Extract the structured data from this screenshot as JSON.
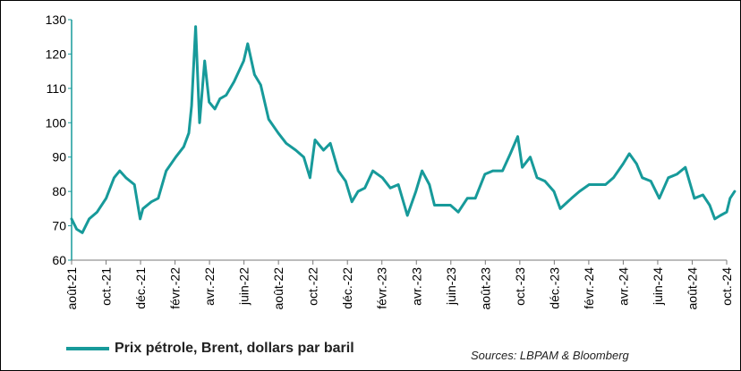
{
  "chart_data": {
    "type": "line",
    "title": "",
    "xlabel": "",
    "ylabel": "",
    "ylim": [
      60,
      130
    ],
    "yticks": [
      "60",
      "70",
      "80",
      "90",
      "100",
      "110",
      "120",
      "130"
    ],
    "grid": false,
    "legend_position": "bottom-left",
    "color": "#179a9a",
    "categories": [
      "août-21",
      "oct.-21",
      "déc.-21",
      "févr.-22",
      "avr.-22",
      "juin-22",
      "août-22",
      "oct.-22",
      "déc.-22",
      "févr.-23",
      "avr.-23",
      "juin-23",
      "août-23",
      "oct.-23",
      "déc.-23",
      "févr.-24",
      "avr.-24",
      "juin-24",
      "août-24",
      "oct.-24"
    ],
    "series": [
      {
        "name": "Prix pétrole, Brent, dollars par baril",
        "x": [
          "2021-08-01",
          "2021-08-10",
          "2021-08-20",
          "2021-09-01",
          "2021-09-15",
          "2021-10-01",
          "2021-10-15",
          "2021-10-25",
          "2021-11-05",
          "2021-11-20",
          "2021-11-30",
          "2021-12-05",
          "2021-12-20",
          "2022-01-01",
          "2022-01-15",
          "2022-02-01",
          "2022-02-15",
          "2022-02-24",
          "2022-03-01",
          "2022-03-08",
          "2022-03-15",
          "2022-03-24",
          "2022-04-01",
          "2022-04-11",
          "2022-04-20",
          "2022-05-01",
          "2022-05-15",
          "2022-06-01",
          "2022-06-08",
          "2022-06-20",
          "2022-07-01",
          "2022-07-15",
          "2022-08-01",
          "2022-08-15",
          "2022-09-01",
          "2022-09-15",
          "2022-09-26",
          "2022-10-05",
          "2022-10-20",
          "2022-11-01",
          "2022-11-15",
          "2022-11-28",
          "2022-12-09",
          "2022-12-20",
          "2023-01-01",
          "2023-01-15",
          "2023-02-01",
          "2023-02-15",
          "2023-03-01",
          "2023-03-17",
          "2023-04-01",
          "2023-04-12",
          "2023-04-25",
          "2023-05-04",
          "2023-05-20",
          "2023-06-01",
          "2023-06-15",
          "2023-07-01",
          "2023-07-15",
          "2023-08-01",
          "2023-08-15",
          "2023-09-01",
          "2023-09-15",
          "2023-09-28",
          "2023-10-06",
          "2023-10-20",
          "2023-11-01",
          "2023-11-15",
          "2023-12-01",
          "2023-12-12",
          "2024-01-01",
          "2024-01-15",
          "2024-02-01",
          "2024-02-15",
          "2024-03-01",
          "2024-03-15",
          "2024-04-01",
          "2024-04-12",
          "2024-04-25",
          "2024-05-05",
          "2024-05-20",
          "2024-06-04",
          "2024-06-20",
          "2024-07-05",
          "2024-07-20",
          "2024-08-05",
          "2024-08-20",
          "2024-09-01",
          "2024-09-10",
          "2024-09-20",
          "2024-10-01",
          "2024-10-07",
          "2024-10-15"
        ],
        "values": [
          72,
          69,
          68,
          72,
          74,
          78,
          84,
          86,
          84,
          82,
          72,
          75,
          77,
          78,
          86,
          90,
          93,
          97,
          105,
          128,
          100,
          118,
          106,
          104,
          107,
          108,
          112,
          118,
          123,
          114,
          111,
          101,
          97,
          94,
          92,
          90,
          84,
          95,
          92,
          94,
          86,
          83,
          77,
          80,
          81,
          86,
          84,
          81,
          82,
          73,
          80,
          86,
          82,
          76,
          76,
          76,
          74,
          78,
          78,
          85,
          86,
          86,
          91,
          96,
          87,
          90,
          84,
          83,
          80,
          75,
          78,
          80,
          82,
          82,
          82,
          84,
          88,
          91,
          88,
          84,
          83,
          78,
          84,
          85,
          87,
          78,
          79,
          76,
          72,
          73,
          74,
          78,
          80
        ]
      }
    ]
  },
  "legend": {
    "label": "Prix pétrole, Brent, dollars par baril"
  },
  "source": "Sources: LBPAM & Bloomberg"
}
